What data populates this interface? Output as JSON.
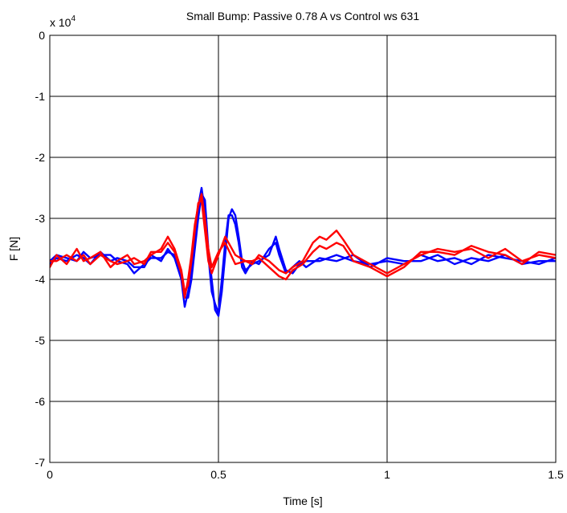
{
  "chart_data": {
    "type": "line",
    "title": "Small Bump: Passive 0.78 A vs Control ws 631",
    "xlabel": "Time [s]",
    "ylabel": "F [N]",
    "y_multiplier_label": "x 10",
    "y_multiplier_exponent": "4",
    "xlim": [
      0,
      1.5
    ],
    "ylim": [
      -7,
      0
    ],
    "y_scale_factor": 10000,
    "xticks": [
      0,
      0.5,
      1,
      1.5
    ],
    "xtick_labels": [
      "0",
      "0.5",
      "1",
      "1.5"
    ],
    "yticks": [
      0,
      -1,
      -2,
      -3,
      -4,
      -5,
      -6,
      -7
    ],
    "ytick_labels": [
      "0",
      "-1",
      "-2",
      "-3",
      "-4",
      "-5",
      "-6",
      "-7"
    ],
    "grid": true,
    "legend": "none",
    "colors": {
      "passive": "#0000ff",
      "control": "#ff0000"
    },
    "series": [
      {
        "color": "#0000ff",
        "x": [
          0,
          0.02,
          0.05,
          0.08,
          0.1,
          0.12,
          0.15,
          0.18,
          0.2,
          0.23,
          0.25,
          0.28,
          0.3,
          0.33,
          0.35,
          0.37,
          0.39,
          0.4,
          0.41,
          0.42,
          0.43,
          0.44,
          0.45,
          0.46,
          0.47,
          0.48,
          0.49,
          0.5,
          0.51,
          0.52,
          0.53,
          0.54,
          0.55,
          0.56,
          0.57,
          0.58,
          0.6,
          0.62,
          0.65,
          0.67,
          0.68,
          0.7,
          0.72,
          0.74,
          0.76,
          0.8,
          0.85,
          0.9,
          0.95,
          1,
          1.05,
          1.1,
          1.15,
          1.2,
          1.25,
          1.3,
          1.35,
          1.4,
          1.45,
          1.5
        ],
        "values": [
          -3.7,
          -3.6,
          -3.65,
          -3.7,
          -3.55,
          -3.65,
          -3.6,
          -3.6,
          -3.7,
          -3.75,
          -3.9,
          -3.75,
          -3.65,
          -3.65,
          -3.55,
          -3.6,
          -3.9,
          -4.3,
          -4.3,
          -4.0,
          -3.5,
          -3.0,
          -2.6,
          -2.7,
          -3.5,
          -4.0,
          -4.5,
          -4.6,
          -4.2,
          -3.6,
          -3.0,
          -2.85,
          -2.95,
          -3.3,
          -3.7,
          -3.85,
          -3.75,
          -3.7,
          -3.6,
          -3.3,
          -3.5,
          -3.85,
          -3.9,
          -3.75,
          -3.7,
          -3.7,
          -3.6,
          -3.7,
          -3.75,
          -3.7,
          -3.75,
          -3.6,
          -3.7,
          -3.65,
          -3.75,
          -3.6,
          -3.65,
          -3.7,
          -3.75,
          -3.65
        ]
      },
      {
        "color": "#0000ff",
        "x": [
          0,
          0.02,
          0.05,
          0.08,
          0.1,
          0.12,
          0.15,
          0.18,
          0.2,
          0.23,
          0.25,
          0.28,
          0.3,
          0.33,
          0.35,
          0.37,
          0.39,
          0.4,
          0.41,
          0.42,
          0.43,
          0.44,
          0.45,
          0.46,
          0.47,
          0.48,
          0.49,
          0.5,
          0.51,
          0.52,
          0.53,
          0.54,
          0.55,
          0.56,
          0.57,
          0.58,
          0.6,
          0.62,
          0.65,
          0.67,
          0.68,
          0.7,
          0.72,
          0.74,
          0.76,
          0.8,
          0.85,
          0.9,
          0.95,
          1,
          1.05,
          1.1,
          1.15,
          1.2,
          1.25,
          1.3,
          1.35,
          1.4,
          1.45,
          1.5
        ],
        "values": [
          -3.75,
          -3.65,
          -3.7,
          -3.6,
          -3.65,
          -3.75,
          -3.55,
          -3.7,
          -3.65,
          -3.7,
          -3.8,
          -3.8,
          -3.6,
          -3.7,
          -3.5,
          -3.65,
          -4.0,
          -4.45,
          -4.2,
          -3.9,
          -3.4,
          -2.8,
          -2.5,
          -2.9,
          -3.6,
          -4.2,
          -4.4,
          -4.55,
          -4.0,
          -3.4,
          -2.95,
          -2.95,
          -3.1,
          -3.4,
          -3.8,
          -3.9,
          -3.7,
          -3.75,
          -3.5,
          -3.4,
          -3.6,
          -3.9,
          -3.8,
          -3.7,
          -3.8,
          -3.65,
          -3.7,
          -3.6,
          -3.8,
          -3.65,
          -3.7,
          -3.7,
          -3.6,
          -3.75,
          -3.65,
          -3.7,
          -3.6,
          -3.75,
          -3.7,
          -3.7
        ]
      },
      {
        "color": "#ff0000",
        "x": [
          0,
          0.02,
          0.05,
          0.08,
          0.1,
          0.12,
          0.15,
          0.18,
          0.2,
          0.23,
          0.25,
          0.28,
          0.3,
          0.33,
          0.35,
          0.37,
          0.39,
          0.4,
          0.41,
          0.42,
          0.43,
          0.44,
          0.45,
          0.46,
          0.47,
          0.48,
          0.5,
          0.52,
          0.55,
          0.58,
          0.6,
          0.62,
          0.65,
          0.68,
          0.7,
          0.72,
          0.75,
          0.78,
          0.8,
          0.82,
          0.85,
          0.87,
          0.9,
          0.95,
          1,
          1.05,
          1.1,
          1.15,
          1.2,
          1.25,
          1.3,
          1.35,
          1.4,
          1.45,
          1.5
        ],
        "values": [
          -3.8,
          -3.6,
          -3.75,
          -3.5,
          -3.7,
          -3.65,
          -3.55,
          -3.8,
          -3.7,
          -3.6,
          -3.75,
          -3.7,
          -3.6,
          -3.5,
          -3.3,
          -3.5,
          -3.85,
          -4.2,
          -4.1,
          -3.7,
          -3.2,
          -2.75,
          -2.7,
          -3.2,
          -3.7,
          -3.9,
          -3.6,
          -3.3,
          -3.6,
          -3.7,
          -3.75,
          -3.6,
          -3.7,
          -3.85,
          -3.9,
          -3.8,
          -3.7,
          -3.4,
          -3.3,
          -3.35,
          -3.2,
          -3.35,
          -3.6,
          -3.75,
          -3.9,
          -3.75,
          -3.6,
          -3.5,
          -3.55,
          -3.5,
          -3.65,
          -3.5,
          -3.7,
          -3.6,
          -3.65
        ]
      },
      {
        "color": "#ff0000",
        "x": [
          0,
          0.02,
          0.05,
          0.08,
          0.1,
          0.12,
          0.15,
          0.18,
          0.2,
          0.23,
          0.25,
          0.28,
          0.3,
          0.33,
          0.35,
          0.37,
          0.39,
          0.4,
          0.41,
          0.42,
          0.43,
          0.44,
          0.45,
          0.46,
          0.47,
          0.48,
          0.5,
          0.52,
          0.55,
          0.58,
          0.6,
          0.62,
          0.65,
          0.68,
          0.7,
          0.72,
          0.75,
          0.78,
          0.8,
          0.82,
          0.85,
          0.87,
          0.9,
          0.95,
          1,
          1.05,
          1.1,
          1.15,
          1.2,
          1.25,
          1.3,
          1.35,
          1.4,
          1.45,
          1.5
        ],
        "values": [
          -3.7,
          -3.7,
          -3.6,
          -3.7,
          -3.6,
          -3.75,
          -3.6,
          -3.7,
          -3.75,
          -3.7,
          -3.65,
          -3.75,
          -3.55,
          -3.55,
          -3.4,
          -3.55,
          -3.9,
          -4.3,
          -4.0,
          -3.6,
          -3.1,
          -2.8,
          -2.6,
          -3.0,
          -3.5,
          -3.8,
          -3.55,
          -3.4,
          -3.75,
          -3.7,
          -3.7,
          -3.65,
          -3.8,
          -3.95,
          -4.0,
          -3.85,
          -3.75,
          -3.55,
          -3.45,
          -3.5,
          -3.4,
          -3.45,
          -3.7,
          -3.8,
          -3.95,
          -3.8,
          -3.55,
          -3.55,
          -3.6,
          -3.45,
          -3.55,
          -3.6,
          -3.75,
          -3.55,
          -3.6
        ]
      }
    ]
  }
}
